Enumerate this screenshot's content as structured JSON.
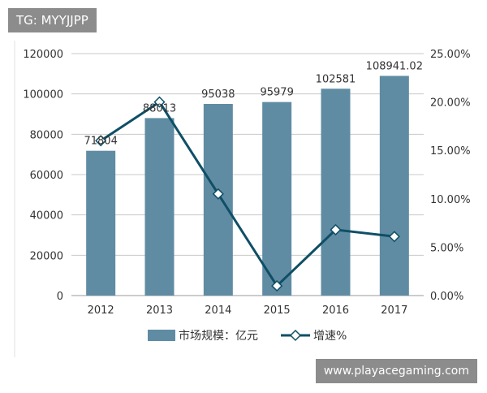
{
  "watermarks": {
    "top": "TG: MYYJJPP",
    "bottom": "www.playacegaming.com"
  },
  "colors": {
    "bar": "#5f8ca3",
    "line": "#0f4f66",
    "grid": "#c8c8c8",
    "text": "#333333"
  },
  "chart_data": {
    "type": "bar",
    "title": "",
    "categories": [
      "2012",
      "2013",
      "2014",
      "2015",
      "2016",
      "2017"
    ],
    "series": [
      {
        "name": "市场规模：亿元",
        "type": "bar",
        "axis": "left",
        "values": [
          71804,
          88013,
          95038,
          95979,
          102581,
          108941.02
        ],
        "labels": [
          "71804",
          "88013",
          "95038",
          "95979",
          "102581",
          "108941.02"
        ]
      },
      {
        "name": "增速%",
        "type": "line",
        "axis": "right",
        "marker": "diamond",
        "values": [
          16.0,
          20.0,
          10.5,
          1.0,
          6.8,
          6.1
        ]
      }
    ],
    "y_left": {
      "min": 0,
      "max": 120000,
      "ticks": [
        0,
        20000,
        40000,
        60000,
        80000,
        100000,
        120000
      ],
      "tick_labels": [
        "0",
        "20000",
        "40000",
        "60000",
        "80000",
        "100000",
        "120000"
      ]
    },
    "y_right": {
      "min": 0,
      "max": 25,
      "ticks": [
        0,
        5,
        10,
        15,
        20,
        25
      ],
      "tick_labels": [
        "0.00%",
        "5.00%",
        "10.00%",
        "15.00%",
        "20.00%",
        "25.00%"
      ]
    },
    "grid": true,
    "legend_position": "bottom"
  }
}
